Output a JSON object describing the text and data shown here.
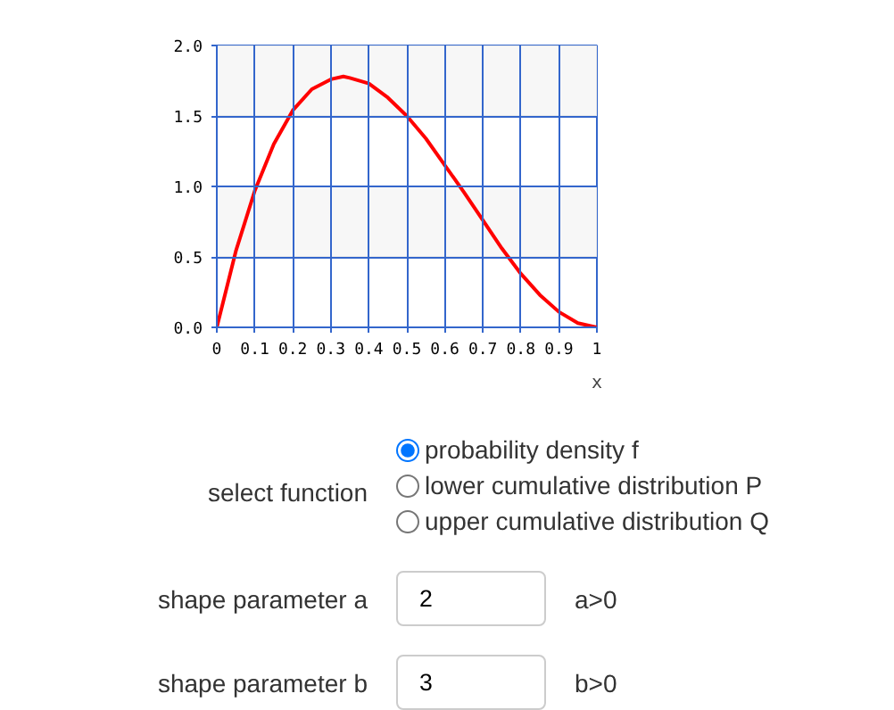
{
  "chart_data": [
    {
      "type": "line",
      "xlabel": "x",
      "x": [
        0,
        0.05,
        0.1,
        0.15,
        0.2,
        0.25,
        0.3,
        0.333,
        0.35,
        0.4,
        0.45,
        0.5,
        0.55,
        0.6,
        0.65,
        0.7,
        0.75,
        0.8,
        0.85,
        0.9,
        0.95,
        1
      ],
      "series": [
        {
          "color": "#ff0000",
          "values": [
            0,
            0.54,
            0.97,
            1.3,
            1.54,
            1.69,
            1.76,
            1.78,
            1.77,
            1.73,
            1.63,
            1.5,
            1.34,
            1.15,
            0.96,
            0.76,
            0.56,
            0.38,
            0.23,
            0.11,
            0.03,
            0
          ]
        }
      ],
      "xlim": [
        0,
        1
      ],
      "ylim": [
        0,
        2
      ],
      "xticks": [
        0,
        0.1,
        0.2,
        0.3,
        0.4,
        0.5,
        0.6,
        0.7,
        0.8,
        0.9,
        1
      ],
      "yticks": [
        {
          "value": 0,
          "label": "0.0"
        },
        {
          "value": 0.5,
          "label": "0.5"
        },
        {
          "value": 1,
          "label": "1.0"
        },
        {
          "value": 1.5,
          "label": "1.5"
        },
        {
          "value": 2,
          "label": "2.0"
        }
      ],
      "bands": [
        {
          "axis": "y",
          "from": 0.5,
          "to": 1,
          "color": "#f7f7f7"
        },
        {
          "axis": "y",
          "from": 1.5,
          "to": 2,
          "color": "#f7f7f7"
        }
      ],
      "grid": true,
      "marker": "none",
      "line_style": "solid"
    },
    {
      "type": "other",
      "annotations": [
        "probability density f",
        "select function",
        "lower cumulative distribution P",
        "upper cumulative distribution Q",
        "shape parameter a",
        "2",
        "a>0",
        "shape parameter b",
        "3",
        "b>0"
      ]
    }
  ]
}
